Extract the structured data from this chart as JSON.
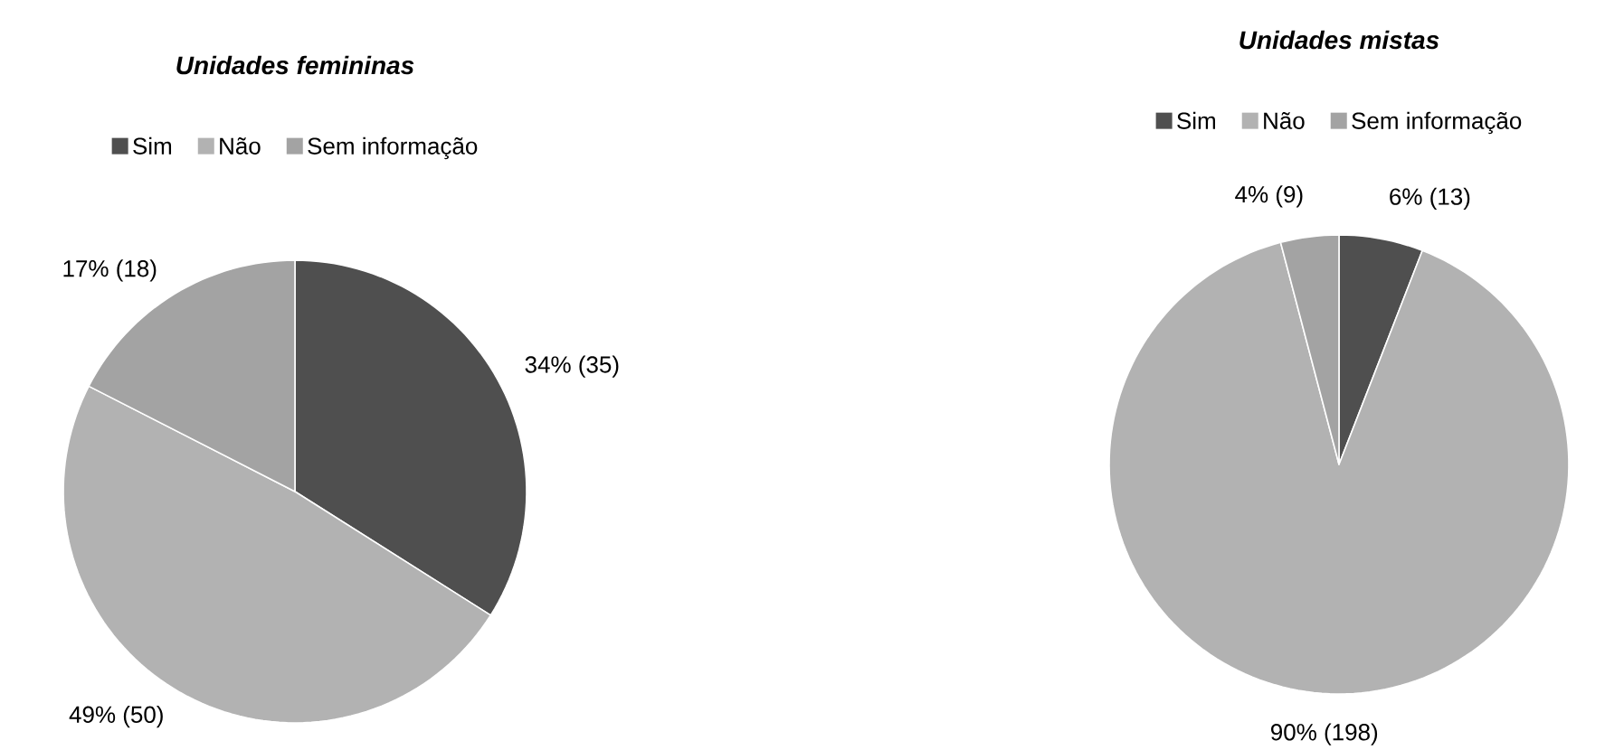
{
  "chart_data": [
    {
      "type": "pie",
      "title": "Unidades femininas",
      "categories": [
        "Sim",
        "Não",
        "Sem informação"
      ],
      "values": [
        35,
        50,
        18
      ],
      "colors": [
        "#4f4f4f",
        "#b2b2b2",
        "#a3a3a3"
      ],
      "value_labels": [
        "34% (35)",
        "49% (50)",
        "17% (18)"
      ],
      "legend": "top"
    },
    {
      "type": "pie",
      "title": "Unidades mistas",
      "categories": [
        "Sim",
        "Não",
        "Sem informação"
      ],
      "values": [
        13,
        198,
        9
      ],
      "colors": [
        "#4f4f4f",
        "#b2b2b2",
        "#a3a3a3"
      ],
      "value_labels": [
        "6% (13)",
        "90% (198)",
        "4% (9)"
      ],
      "legend": "top"
    }
  ]
}
